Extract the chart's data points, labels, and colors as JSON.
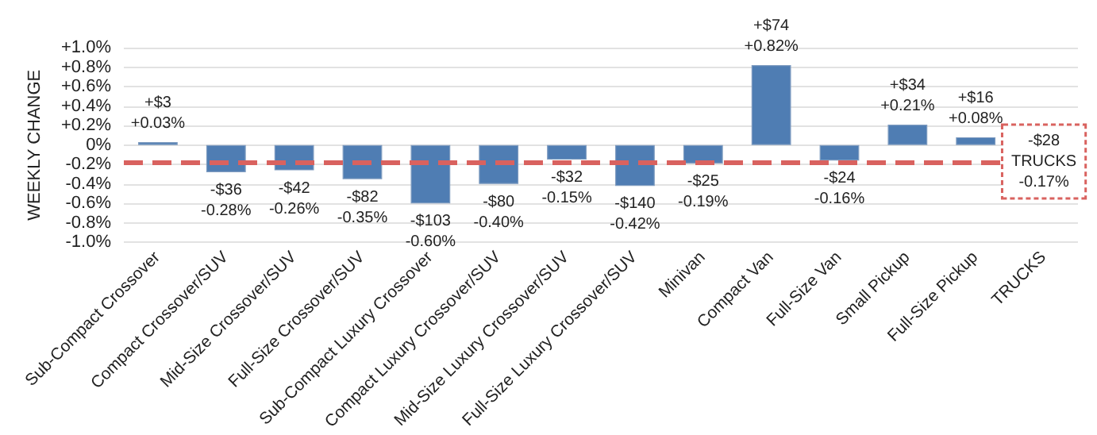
{
  "chart_data": {
    "type": "bar",
    "ylabel": "WEEKLY CHANGE",
    "categories": [
      "Sub-Compact Crossover",
      "Compact Crossover/SUV",
      "Mid-Size Crossover/SUV",
      "Full-Size Crossover/SUV",
      "Sub-Compact Luxury Crossover",
      "Compact Luxury Crossover/SUV",
      "Mid-Size Luxury Crossover/SUV",
      "Full-Size Luxury Crossover/SUV",
      "Minivan",
      "Compact Van",
      "Full-Size Van",
      "Small Pickup",
      "Full-Size Pickup",
      "TRUCKS"
    ],
    "values": [
      0.03,
      -0.28,
      -0.26,
      -0.35,
      -0.6,
      -0.4,
      -0.15,
      -0.42,
      -0.19,
      0.82,
      -0.16,
      0.21,
      0.08,
      null
    ],
    "value_labels": [
      "+$3\n+0.03%",
      "-$36\n-0.28%",
      "-$42\n-0.26%",
      "-$82\n-0.35%",
      "-$103\n-0.60%",
      "-$80\n-0.40%",
      "-$32\n-0.15%",
      "-$140\n-0.42%",
      "-$25\n-0.19%",
      "+$74\n+0.82%",
      "-$24\n-0.16%",
      "+$34\n+0.21%",
      "+$16\n+0.08%",
      null
    ],
    "color": "#4f7db3",
    "ylim": [
      -1.0,
      1.0
    ],
    "yticks": [
      {
        "value": -1.0,
        "label": "-1.0%"
      },
      {
        "value": -0.8,
        "label": "-0.8%"
      },
      {
        "value": -0.6,
        "label": "-0.6%"
      },
      {
        "value": -0.4,
        "label": "-0.4%"
      },
      {
        "value": -0.2,
        "label": "-0.2%"
      },
      {
        "value": 0,
        "label": "0%"
      },
      {
        "value": 0.2,
        "label": "+0.2%"
      },
      {
        "value": 0.4,
        "label": "+0.4%"
      },
      {
        "value": 0.6,
        "label": "+0.6%"
      },
      {
        "value": 0.8,
        "label": "+0.8%"
      },
      {
        "value": 1.0,
        "label": "+1.0%"
      }
    ],
    "ref_lines": [
      {
        "axis": "y",
        "value": -0.17,
        "label": "-$28\nTRUCKS\n-0.17%",
        "color": "#d9625f",
        "line_style": "dashed"
      }
    ],
    "grid": "y"
  }
}
